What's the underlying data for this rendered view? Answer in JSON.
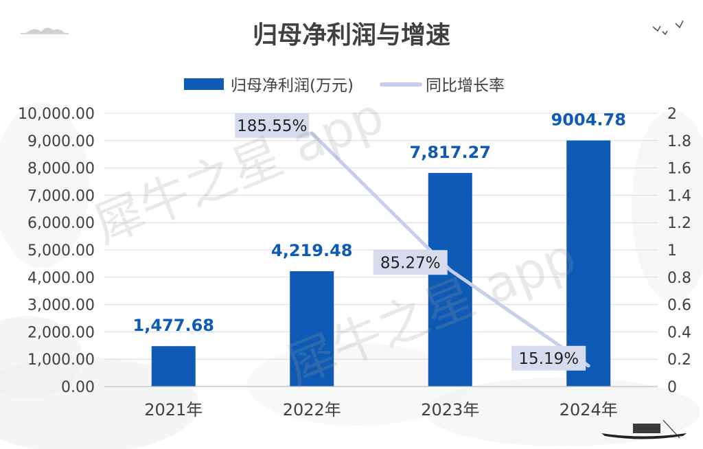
{
  "chart_data": {
    "type": "bar",
    "title": "归母净利润与增速",
    "categories": [
      "2021年",
      "2022年",
      "2023年",
      "2024年"
    ],
    "series": [
      {
        "name": "归母净利润(万元)",
        "type": "bar",
        "axis": "left",
        "color": "#0E5AB4",
        "values": [
          1477.68,
          4219.48,
          7817.27,
          9004.78
        ],
        "labels": [
          "1,477.68",
          "4,219.48",
          "7,817.27",
          "9004.78"
        ]
      },
      {
        "name": "同比增长率",
        "type": "line",
        "axis": "right",
        "color": "#C5CFEA",
        "values": [
          null,
          1.8555,
          0.8527,
          0.1519
        ],
        "labels": [
          "",
          "185.55%",
          "85.27%",
          "15.19%"
        ]
      }
    ],
    "y_left": {
      "range": [
        0,
        10000
      ],
      "ticks": [
        "0.00",
        "1,000.00",
        "2,000.00",
        "3,000.00",
        "4,000.00",
        "5,000.00",
        "6,000.00",
        "7,000.00",
        "8,000.00",
        "9,000.00",
        "10,000.00"
      ]
    },
    "y_right": {
      "range": [
        0,
        2
      ],
      "ticks": [
        "0",
        "0.2",
        "0.4",
        "0.6",
        "0.8",
        "1",
        "1.2",
        "1.4",
        "1.6",
        "1.8",
        "2"
      ]
    },
    "grid": true,
    "legend_position": "top"
  },
  "watermark": "犀牛之星 app",
  "colors": {
    "bar": "#0E5AB4",
    "line": "#C5CFEA",
    "label_box": "#D6DCEE",
    "text": "#404040",
    "grid": "#D9D9D9"
  }
}
